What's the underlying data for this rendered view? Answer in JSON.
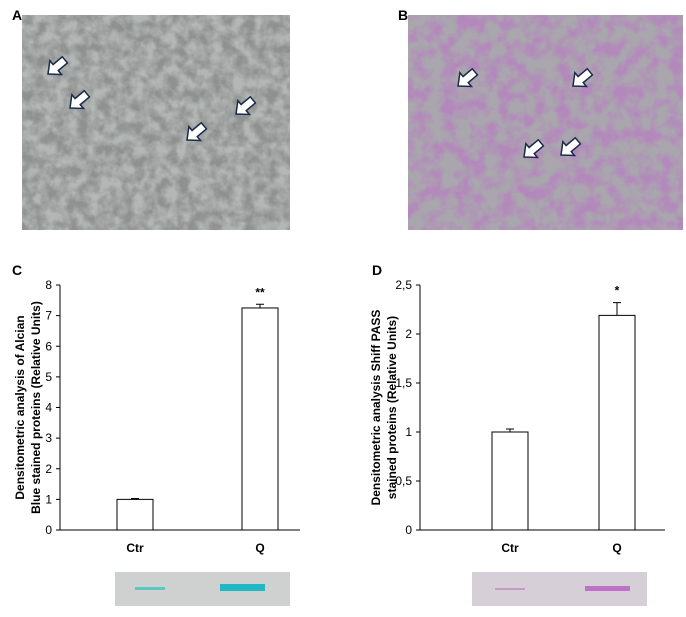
{
  "panels": [
    "A",
    "B",
    "C",
    "D"
  ],
  "chart_data": [
    {
      "type": "bar",
      "categories": [
        "Ctr",
        "Q"
      ],
      "values": [
        1.0,
        7.25
      ],
      "errors": [
        0.03,
        0.12
      ],
      "ylabel": [
        "Densitometric analysis of Alcian",
        "Blue  stained  proteins (Relative Units)"
      ],
      "ylim": [
        0,
        8
      ],
      "yticks": [
        0,
        1,
        2,
        3,
        4,
        5,
        6,
        7,
        8
      ],
      "color": "#ffffff",
      "annotations": [
        {
          "text": "**",
          "x": "Q"
        }
      ]
    },
    {
      "type": "bar",
      "categories": [
        "Ctr",
        "Q"
      ],
      "values": [
        1.0,
        2.19
      ],
      "errors": [
        0.03,
        0.13
      ],
      "ylabel": [
        "Densitometric analysis Shiff PASS",
        "stained  proteins (Relative Units)"
      ],
      "ylim": [
        0,
        2.5
      ],
      "yticks": [
        0,
        {
          "value": 0.5,
          "label": "0,5"
        },
        1,
        {
          "value": 1.5,
          "label": "1,5"
        },
        2,
        {
          "value": 2.5,
          "label": "2,5"
        }
      ],
      "color": "#ffffff",
      "annotations": [
        {
          "text": "*",
          "x": "Q"
        }
      ]
    }
  ]
}
